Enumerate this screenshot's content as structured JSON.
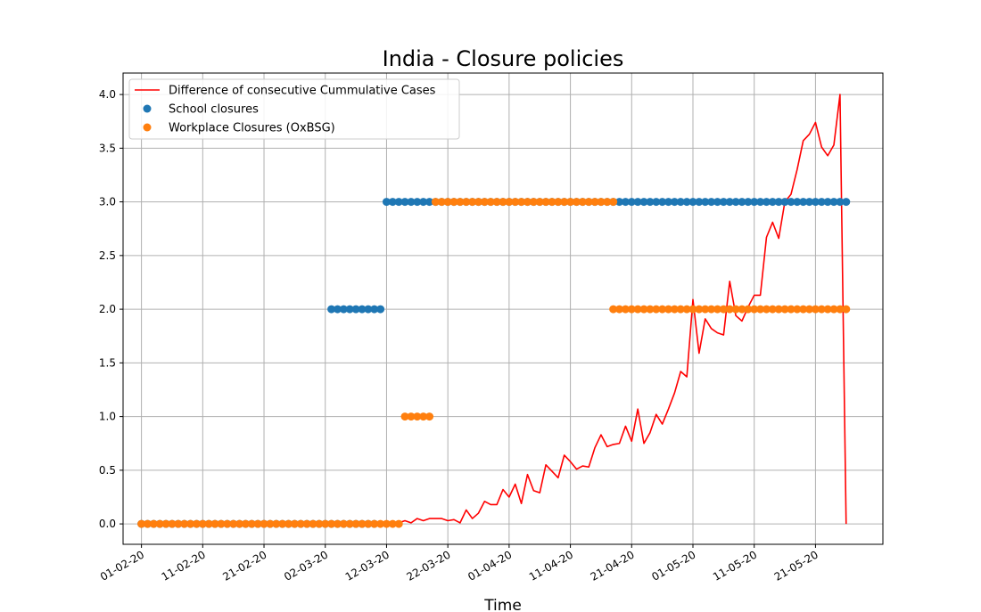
{
  "chart_data": {
    "type": "line",
    "title": "India - Closure policies",
    "xlabel": "Time",
    "ylabel": "",
    "ylim": [
      -0.19,
      4.2
    ],
    "yticks": [
      "0.0",
      "0.5",
      "1.0",
      "1.5",
      "2.0",
      "2.5",
      "3.0",
      "3.5",
      "4.0"
    ],
    "xticks": [
      "01-02-20",
      "11-02-20",
      "21-02-20",
      "02-03-20",
      "12-03-20",
      "22-03-20",
      "01-04-20",
      "11-04-20",
      "21-04-20",
      "01-05-20",
      "11-05-20",
      "21-05-20"
    ],
    "grid": true,
    "legend_position": "upper-left",
    "colors": {
      "line": "#ff0000",
      "school": "#1f77b4",
      "workplace": "#ff7f0e"
    },
    "series": [
      {
        "name": "Difference of consecutive Cummulative Cases",
        "kind": "line",
        "points": [
          [
            "2020-02-01",
            0
          ],
          [
            "2020-03-10",
            0
          ],
          [
            "2020-03-12",
            0.01
          ],
          [
            "2020-03-13",
            0.02
          ],
          [
            "2020-03-14",
            0.01
          ],
          [
            "2020-03-15",
            0.03
          ],
          [
            "2020-03-16",
            0.01
          ],
          [
            "2020-03-17",
            0.05
          ],
          [
            "2020-03-18",
            0.03
          ],
          [
            "2020-03-19",
            0.05
          ],
          [
            "2020-03-20",
            0.05
          ],
          [
            "2020-03-21",
            0.05
          ],
          [
            "2020-03-22",
            0.03
          ],
          [
            "2020-03-23",
            0.04
          ],
          [
            "2020-03-24",
            0.01
          ],
          [
            "2020-03-25",
            0.13
          ],
          [
            "2020-03-26",
            0.05
          ],
          [
            "2020-03-27",
            0.1
          ],
          [
            "2020-03-28",
            0.21
          ],
          [
            "2020-03-29",
            0.18
          ],
          [
            "2020-03-30",
            0.18
          ],
          [
            "2020-03-31",
            0.32
          ],
          [
            "2020-04-01",
            0.25
          ],
          [
            "2020-04-02",
            0.37
          ],
          [
            "2020-04-03",
            0.19
          ],
          [
            "2020-04-04",
            0.46
          ],
          [
            "2020-04-05",
            0.31
          ],
          [
            "2020-04-06",
            0.29
          ],
          [
            "2020-04-07",
            0.55
          ],
          [
            "2020-04-08",
            0.49
          ],
          [
            "2020-04-09",
            0.43
          ],
          [
            "2020-04-10",
            0.64
          ],
          [
            "2020-04-11",
            0.58
          ],
          [
            "2020-04-12",
            0.51
          ],
          [
            "2020-04-13",
            0.54
          ],
          [
            "2020-04-14",
            0.53
          ],
          [
            "2020-04-15",
            0.71
          ],
          [
            "2020-04-16",
            0.83
          ],
          [
            "2020-04-17",
            0.72
          ],
          [
            "2020-04-18",
            0.74
          ],
          [
            "2020-04-19",
            0.75
          ],
          [
            "2020-04-20",
            0.91
          ],
          [
            "2020-04-21",
            0.77
          ],
          [
            "2020-04-22",
            1.07
          ],
          [
            "2020-04-23",
            0.75
          ],
          [
            "2020-04-24",
            0.85
          ],
          [
            "2020-04-25",
            1.02
          ],
          [
            "2020-04-26",
            0.93
          ],
          [
            "2020-04-27",
            1.07
          ],
          [
            "2020-04-28",
            1.22
          ],
          [
            "2020-04-29",
            1.42
          ],
          [
            "2020-04-30",
            1.37
          ],
          [
            "2020-05-01",
            2.09
          ],
          [
            "2020-05-02",
            1.59
          ],
          [
            "2020-05-03",
            1.91
          ],
          [
            "2020-05-04",
            1.82
          ],
          [
            "2020-05-05",
            1.78
          ],
          [
            "2020-05-06",
            1.76
          ],
          [
            "2020-05-07",
            2.26
          ],
          [
            "2020-05-08",
            1.94
          ],
          [
            "2020-05-09",
            1.89
          ],
          [
            "2020-05-10",
            2.02
          ],
          [
            "2020-05-11",
            2.13
          ],
          [
            "2020-05-12",
            2.13
          ],
          [
            "2020-05-13",
            2.67
          ],
          [
            "2020-05-14",
            2.81
          ],
          [
            "2020-05-15",
            2.66
          ],
          [
            "2020-05-16",
            3.0
          ],
          [
            "2020-05-17",
            3.07
          ],
          [
            "2020-05-18",
            3.3
          ],
          [
            "2020-05-19",
            3.57
          ],
          [
            "2020-05-20",
            3.63
          ],
          [
            "2020-05-21",
            3.74
          ],
          [
            "2020-05-22",
            3.51
          ],
          [
            "2020-05-23",
            3.43
          ],
          [
            "2020-05-24",
            3.53
          ],
          [
            "2020-05-25",
            4.0
          ],
          [
            "2020-05-26",
            0
          ]
        ]
      },
      {
        "name": "School closures",
        "kind": "scatter",
        "segments": [
          {
            "from": "2020-02-01",
            "to": "2020-03-10",
            "value": 0
          },
          {
            "from": "2020-03-03",
            "to": "2020-03-11",
            "value": 2
          },
          {
            "from": "2020-03-12",
            "to": "2020-05-26",
            "value": 3
          }
        ]
      },
      {
        "name": "Workplace Closures (OxBSG)",
        "kind": "scatter",
        "segments": [
          {
            "from": "2020-02-01",
            "to": "2020-03-14",
            "value": 0
          },
          {
            "from": "2020-03-15",
            "to": "2020-03-19",
            "value": 1
          },
          {
            "from": "2020-03-20",
            "to": "2020-04-18",
            "value": 3
          },
          {
            "from": "2020-04-18",
            "to": "2020-05-26",
            "value": 2
          }
        ]
      }
    ]
  }
}
